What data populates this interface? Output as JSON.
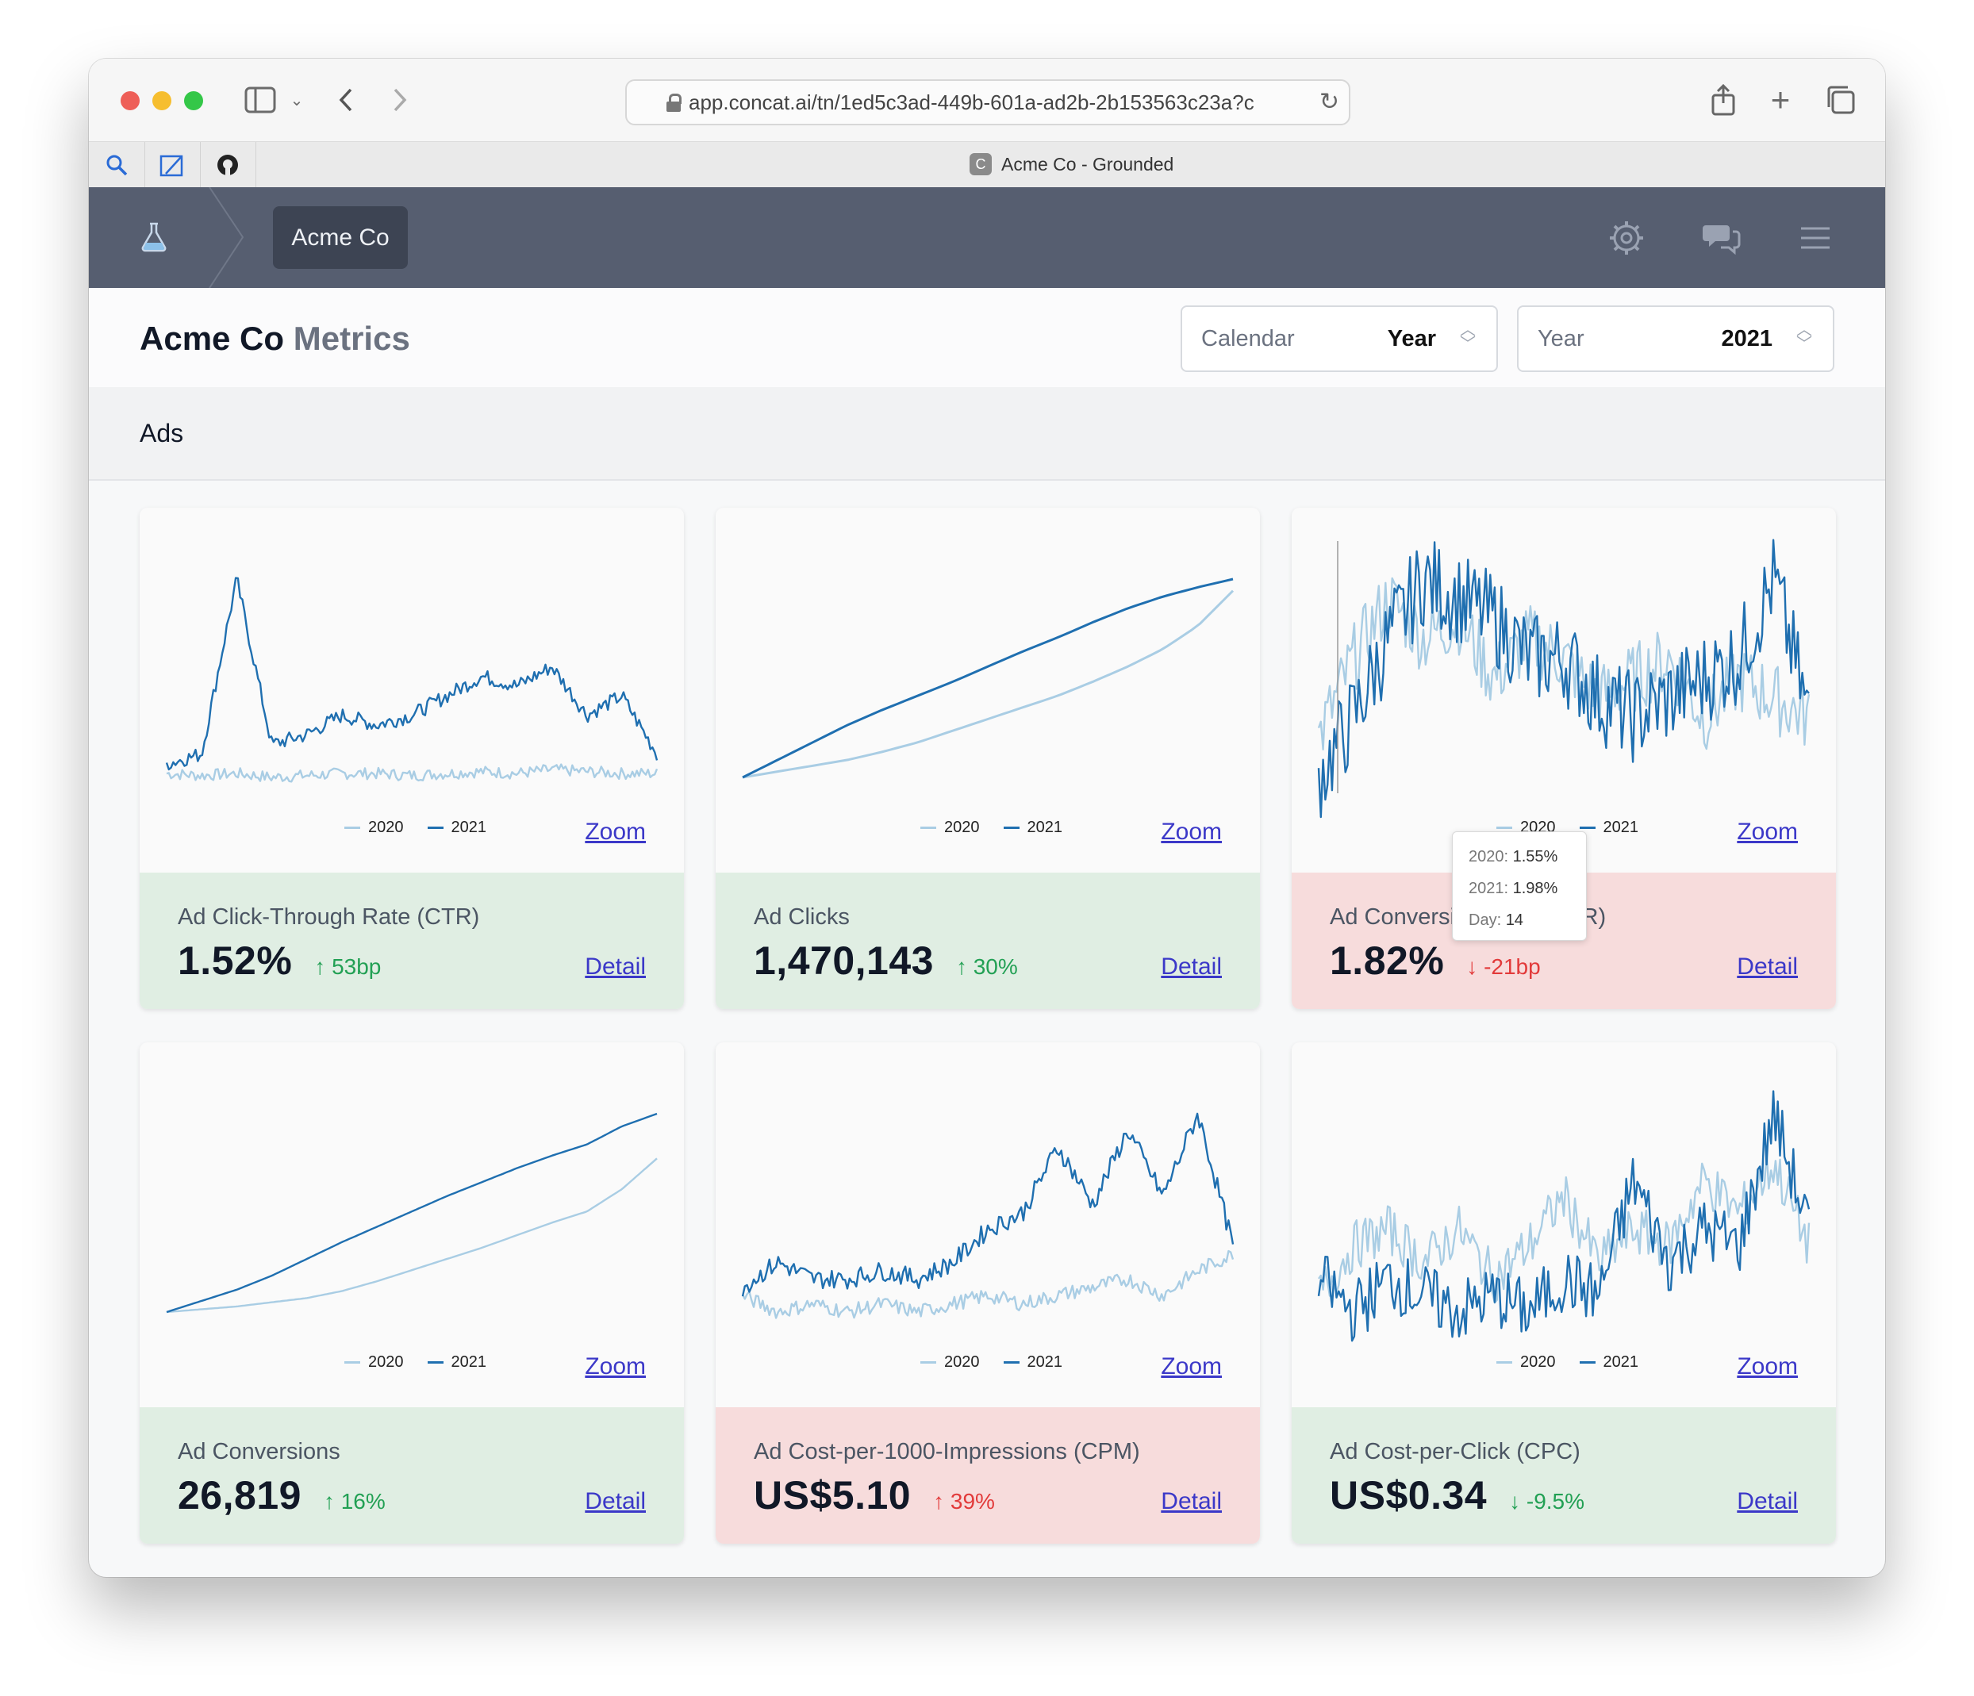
{
  "browser": {
    "url": "app.concat.ai/tn/1ed5c3ad-449b-601a-ad2b-2b153563c23a?c",
    "tab_title": "Acme Co - Grounded",
    "favicon_letter": "C"
  },
  "nav": {
    "breadcrumb": "Acme Co"
  },
  "header": {
    "title_bold": "Acme Co",
    "title_light": "Metrics",
    "calendar_select": {
      "label": "Calendar",
      "value": "Year"
    },
    "year_select": {
      "label": "Year",
      "value": "2021"
    }
  },
  "section": {
    "title": "Ads"
  },
  "legend": {
    "y2020": "2020",
    "y2021": "2021"
  },
  "colors": {
    "y2020": "#a9cde4",
    "y2021": "#1f6fb0",
    "good": "#e0eee3",
    "bad": "#f7dcdc"
  },
  "links": {
    "zoom": "Zoom",
    "detail": "Detail"
  },
  "tooltip": {
    "r1_key": "2020:",
    "r1_val": "1.55%",
    "r2_key": "2021:",
    "r2_val": "1.98%",
    "r3_key": "Day:",
    "r3_val": "14"
  },
  "metrics": [
    {
      "title": "Ad Click-Through Rate (CTR)",
      "value": "1.52%",
      "delta": "53bp",
      "direction": "up",
      "status": "good"
    },
    {
      "title": "Ad Clicks",
      "value": "1,470,143",
      "delta": "30%",
      "direction": "up",
      "status": "good"
    },
    {
      "title": "Ad Conversion Rate (CVR)",
      "value": "1.82%",
      "delta": "-21bp",
      "direction": "down",
      "status": "bad"
    },
    {
      "title": "Ad Conversions",
      "value": "26,819",
      "delta": "16%",
      "direction": "up",
      "status": "good"
    },
    {
      "title": "Ad Cost-per-1000-Impressions (CPM)",
      "value": "US$5.10",
      "delta": "39%",
      "direction": "up",
      "status": "bad"
    },
    {
      "title": "Ad Cost-per-Click (CPC)",
      "value": "US$0.34",
      "delta": "-9.5%",
      "direction": "down",
      "status": "good"
    }
  ],
  "chart_data": [
    {
      "type": "line",
      "chart": "ctr",
      "x": "day of year",
      "series": [
        {
          "name": "2020",
          "values": [
            1.0,
            0.99,
            1.0,
            0.98,
            0.99,
            1.0,
            1.0,
            0.99,
            1.0,
            1.01,
            1.0,
            1.02,
            1.01,
            1.0,
            1.0
          ]
        },
        {
          "name": "2021",
          "values": [
            1.05,
            1.1,
            2.0,
            1.15,
            1.2,
            1.3,
            1.25,
            1.3,
            1.4,
            1.5,
            1.45,
            1.55,
            1.3,
            1.4,
            1.1
          ]
        }
      ]
    },
    {
      "type": "line",
      "chart": "clicks",
      "x": "day of year",
      "series": [
        {
          "name": "2020",
          "values": [
            0,
            5,
            10,
            15,
            22,
            30,
            40,
            50,
            60,
            70,
            82,
            95,
            110,
            130,
            160
          ]
        },
        {
          "name": "2021",
          "values": [
            0,
            15,
            30,
            45,
            58,
            70,
            82,
            95,
            108,
            120,
            133,
            145,
            155,
            163,
            170
          ]
        }
      ]
    },
    {
      "type": "line",
      "chart": "cvr",
      "x": "day of year",
      "series": [
        {
          "name": "2020",
          "values": [
            1.5,
            1.9,
            2.2,
            2.0,
            2.1,
            1.8,
            2.0,
            1.9,
            1.7,
            1.8,
            1.9,
            1.6,
            1.8,
            1.7,
            1.6
          ]
        },
        {
          "name": "2021",
          "values": [
            1.3,
            1.6,
            2.0,
            2.3,
            2.2,
            2.1,
            1.9,
            1.9,
            1.7,
            1.6,
            1.7,
            1.8,
            1.9,
            2.3,
            1.6
          ]
        }
      ]
    },
    {
      "type": "line",
      "chart": "conversions",
      "x": "day of year",
      "series": [
        {
          "name": "2020",
          "values": [
            0,
            2,
            4,
            7,
            10,
            15,
            22,
            30,
            38,
            46,
            55,
            64,
            72,
            88,
            110
          ]
        },
        {
          "name": "2021",
          "values": [
            0,
            8,
            16,
            26,
            38,
            50,
            61,
            72,
            83,
            93,
            103,
            112,
            120,
            133,
            142
          ]
        }
      ]
    },
    {
      "type": "line",
      "chart": "cpm",
      "x": "day of year",
      "series": [
        {
          "name": "2020",
          "values": [
            3.6,
            3.4,
            3.5,
            3.4,
            3.5,
            3.4,
            3.5,
            3.6,
            3.5,
            3.6,
            3.7,
            3.8,
            3.6,
            3.9,
            4.1
          ]
        },
        {
          "name": "2021",
          "values": [
            3.7,
            4.0,
            3.8,
            3.8,
            3.9,
            3.8,
            4.0,
            4.4,
            4.6,
            5.4,
            4.7,
            5.6,
            4.8,
            5.8,
            4.2
          ]
        }
      ]
    },
    {
      "type": "line",
      "chart": "cpc",
      "x": "day of year",
      "series": [
        {
          "name": "2020",
          "values": [
            0.3,
            0.33,
            0.34,
            0.32,
            0.34,
            0.31,
            0.33,
            0.36,
            0.32,
            0.34,
            0.33,
            0.37,
            0.35,
            0.38,
            0.33
          ]
        },
        {
          "name": "2021",
          "values": [
            0.31,
            0.29,
            0.31,
            0.3,
            0.29,
            0.3,
            0.29,
            0.31,
            0.3,
            0.37,
            0.32,
            0.34,
            0.33,
            0.41,
            0.34
          ]
        }
      ]
    }
  ]
}
